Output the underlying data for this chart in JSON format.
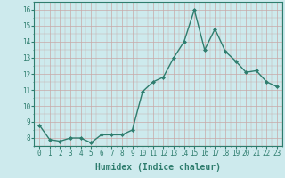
{
  "x": [
    0,
    1,
    2,
    3,
    4,
    5,
    6,
    7,
    8,
    9,
    10,
    11,
    12,
    13,
    14,
    15,
    16,
    17,
    18,
    19,
    20,
    21,
    22,
    23
  ],
  "y": [
    8.8,
    7.9,
    7.8,
    8.0,
    8.0,
    7.7,
    8.2,
    8.2,
    8.2,
    8.5,
    10.9,
    11.5,
    11.8,
    13.0,
    14.0,
    16.0,
    13.5,
    14.8,
    13.4,
    12.8,
    12.1,
    12.2,
    11.5,
    11.2
  ],
  "line_color": "#2e7d6e",
  "marker": "D",
  "marker_size": 2.0,
  "bg_color": "#cdeaed",
  "grid_color": "#c8a8a8",
  "xlabel": "Humidex (Indice chaleur)",
  "xlabel_fontsize": 7,
  "ylabel_ticks": [
    8,
    9,
    10,
    11,
    12,
    13,
    14,
    15,
    16
  ],
  "xlim": [
    -0.5,
    23.5
  ],
  "ylim": [
    7.5,
    16.5
  ],
  "xticks": [
    0,
    1,
    2,
    3,
    4,
    5,
    6,
    7,
    8,
    9,
    10,
    11,
    12,
    13,
    14,
    15,
    16,
    17,
    18,
    19,
    20,
    21,
    22,
    23
  ],
  "tick_fontsize": 5.5,
  "line_width": 1.0
}
